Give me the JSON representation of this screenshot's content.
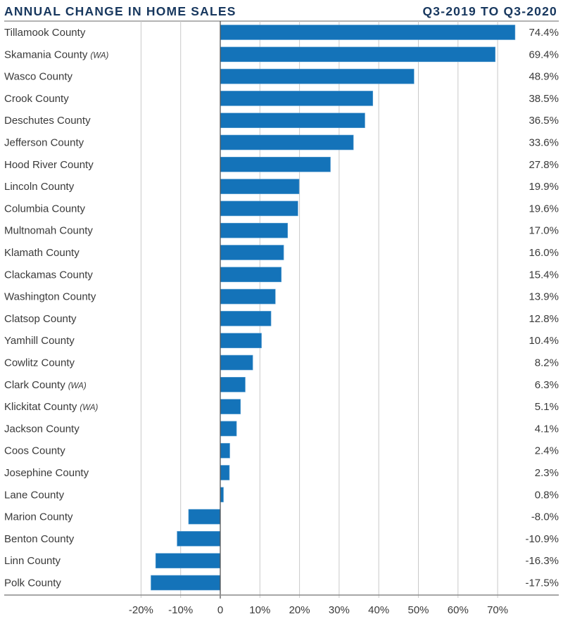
{
  "chart_data": {
    "type": "bar",
    "orientation": "horizontal",
    "title": "ANNUAL CHANGE IN HOME SALES",
    "subtitle": "Q3-2019 TO Q3-2020",
    "xlabel": "",
    "ylabel": "",
    "xlim": [
      -20,
      80
    ],
    "xticks": [
      -20,
      -10,
      0,
      10,
      20,
      30,
      40,
      50,
      60,
      70
    ],
    "xtick_labels": [
      "-20%",
      "-10%",
      "0",
      "10%",
      "20%",
      "30%",
      "40%",
      "50%",
      "60%",
      "70%"
    ],
    "grid": true,
    "bar_color": "#1473b9",
    "categories": [
      {
        "name": "Tillamook County",
        "note": ""
      },
      {
        "name": "Skamania County",
        "note": "(WA)"
      },
      {
        "name": "Wasco County",
        "note": ""
      },
      {
        "name": "Crook County",
        "note": ""
      },
      {
        "name": "Deschutes County",
        "note": ""
      },
      {
        "name": "Jefferson County",
        "note": ""
      },
      {
        "name": "Hood River County",
        "note": ""
      },
      {
        "name": "Lincoln County",
        "note": ""
      },
      {
        "name": "Columbia County",
        "note": ""
      },
      {
        "name": "Multnomah County",
        "note": ""
      },
      {
        "name": "Klamath County",
        "note": ""
      },
      {
        "name": "Clackamas County",
        "note": ""
      },
      {
        "name": "Washington County",
        "note": ""
      },
      {
        "name": "Clatsop County",
        "note": ""
      },
      {
        "name": "Yamhill County",
        "note": ""
      },
      {
        "name": "Cowlitz County",
        "note": ""
      },
      {
        "name": "Clark County",
        "note": "(WA)"
      },
      {
        "name": "Klickitat County",
        "note": "(WA)"
      },
      {
        "name": "Jackson County",
        "note": ""
      },
      {
        "name": "Coos County",
        "note": ""
      },
      {
        "name": "Josephine County",
        "note": ""
      },
      {
        "name": "Lane County",
        "note": ""
      },
      {
        "name": "Marion County",
        "note": ""
      },
      {
        "name": "Benton County",
        "note": ""
      },
      {
        "name": "Linn County",
        "note": ""
      },
      {
        "name": "Polk County",
        "note": ""
      }
    ],
    "values": [
      74.4,
      69.4,
      48.9,
      38.5,
      36.5,
      33.6,
      27.8,
      19.9,
      19.6,
      17.0,
      16.0,
      15.4,
      13.9,
      12.8,
      10.4,
      8.2,
      6.3,
      5.1,
      4.1,
      2.4,
      2.3,
      0.8,
      -8.0,
      -10.9,
      -16.3,
      -17.5
    ],
    "value_labels": [
      "74.4%",
      "69.4%",
      "48.9%",
      "38.5%",
      "36.5%",
      "33.6%",
      "27.8%",
      "19.9%",
      "19.6%",
      "17.0%",
      "16.0%",
      "15.4%",
      "13.9%",
      "12.8%",
      "10.4%",
      "8.2%",
      "6.3%",
      "5.1%",
      "4.1%",
      "2.4%",
      "2.3%",
      "0.8%",
      "-8.0%",
      "-10.9%",
      "-16.3%",
      "-17.5%"
    ]
  }
}
